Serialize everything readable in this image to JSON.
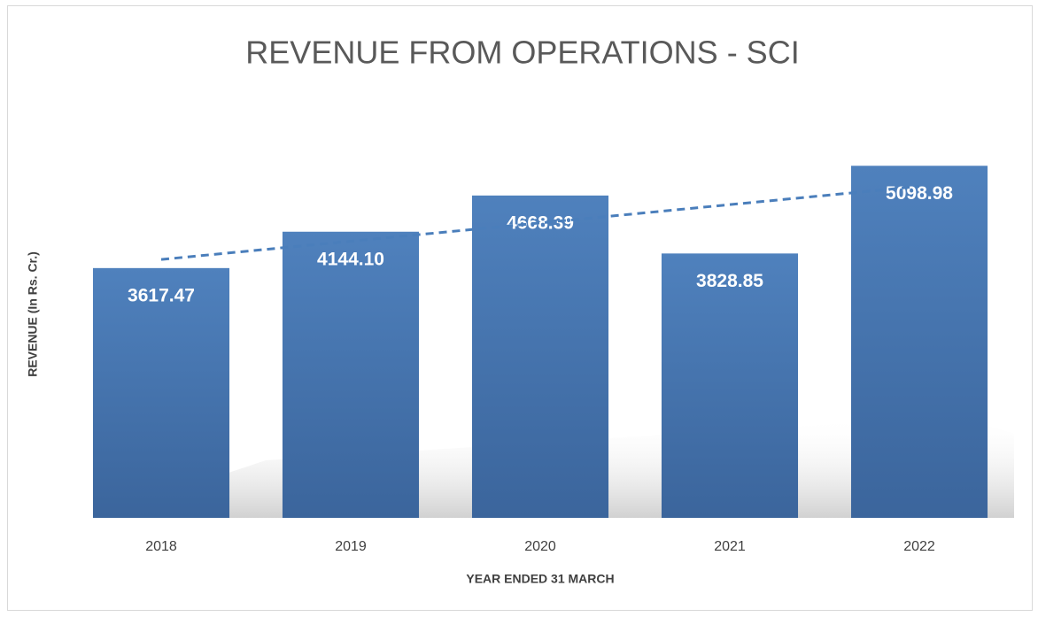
{
  "chart_data": {
    "type": "bar",
    "title": "REVENUE FROM OPERATIONS - SCI",
    "xlabel": "YEAR ENDED 31 MARCH",
    "ylabel": "REVENUE (In Rs. Cr.)",
    "categories": [
      "2018",
      "2019",
      "2020",
      "2021",
      "2022"
    ],
    "values": [
      3617.47,
      4144.1,
      4668.39,
      3828.85,
      5098.98
    ],
    "value_labels": [
      "3617.47",
      "4144.10",
      "4668.39",
      "3828.85",
      "5098.98"
    ],
    "color": "#4a7ebb",
    "ylim": [
      0,
      6000
    ],
    "trendline": "linear"
  }
}
